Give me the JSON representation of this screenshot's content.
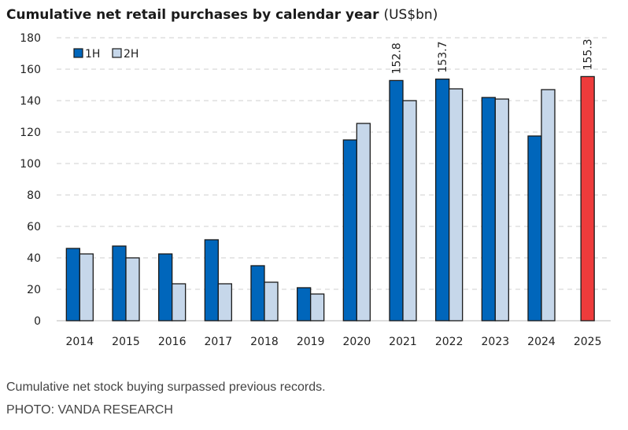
{
  "chart_data": {
    "type": "bar",
    "title": "Cumulative net retail purchases by calendar year",
    "title_unit": "(US$bn)",
    "categories": [
      "2014",
      "2015",
      "2016",
      "2017",
      "2018",
      "2019",
      "2020",
      "2021",
      "2022",
      "2023",
      "2024",
      "2025"
    ],
    "series": [
      {
        "name": "1H",
        "color": "#0066bb",
        "values": [
          46,
          47.5,
          42.5,
          51.5,
          35,
          21,
          115,
          152.8,
          153.7,
          142,
          117.5,
          155.3
        ]
      },
      {
        "name": "2H",
        "color": "#c6d7ea",
        "values": [
          42.5,
          40,
          23.5,
          23.5,
          24.5,
          17,
          125.5,
          140,
          147.5,
          141,
          147,
          null
        ]
      }
    ],
    "highlight": {
      "category": "2025",
      "color": "#ee3b3b"
    },
    "data_labels": [
      {
        "category": "2021",
        "series": "1H",
        "text": "152.8"
      },
      {
        "category": "2022",
        "series": "1H",
        "text": "153.7"
      },
      {
        "category": "2025",
        "series": "1H",
        "text": "155.3"
      }
    ],
    "yticks": [
      0,
      20,
      40,
      60,
      80,
      100,
      120,
      140,
      160,
      180
    ],
    "ylim": [
      0,
      180
    ],
    "xlabel": "",
    "ylabel": "",
    "grid": true,
    "legend_position": "top-left"
  },
  "caption": "Cumulative net stock buying surpassed previous records.",
  "credit": "PHOTO: VANDA RESEARCH"
}
